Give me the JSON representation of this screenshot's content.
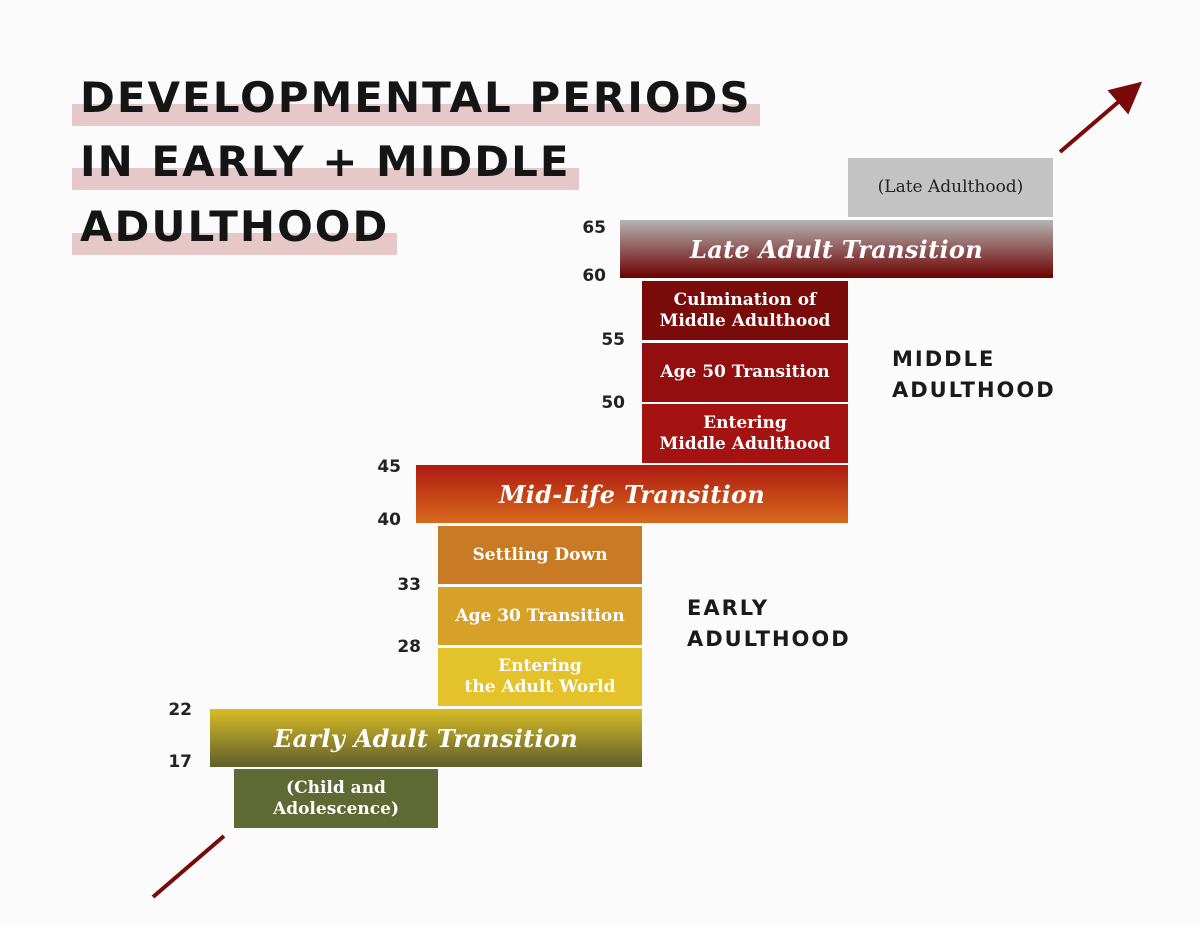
{
  "title": {
    "line1": "DEVELOPMENTAL PERIODS",
    "line2": "IN EARLY + MIDDLE",
    "line3": "ADULTHOOD"
  },
  "periods": {
    "late_adulthood": "(Late Adulthood)",
    "late_adult_transition": "Late Adult Transition",
    "culmination": "Culmination of\nMiddle Adulthood",
    "age50": "Age 50 Transition",
    "entering_middle": "Entering\nMiddle Adulthood",
    "midlife": "Mid-Life Transition",
    "settling_down": "Settling Down",
    "age30": "Age 30 Transition",
    "entering_adult_world": "Entering\nthe Adult World",
    "early_adult_transition": "Early Adult Transition",
    "child": "(Child and\nAdolescence)"
  },
  "ages": {
    "a65": "65",
    "a60": "60",
    "a55": "55",
    "a50": "50",
    "a45": "45",
    "a40": "40",
    "a33": "33",
    "a28": "28",
    "a22": "22",
    "a17": "17"
  },
  "sections": {
    "middle": "MIDDLE\nADULTHOOD",
    "early": "EARLY\nADULTHOOD"
  },
  "colors": {
    "arrow": "#7a0a0a",
    "title_highlight": "#e7c8c8"
  }
}
